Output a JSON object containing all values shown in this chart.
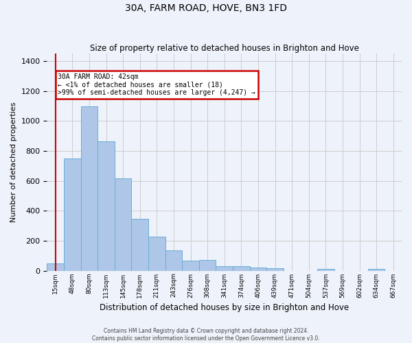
{
  "title": "30A, FARM ROAD, HOVE, BN3 1FD",
  "subtitle": "Size of property relative to detached houses in Brighton and Hove",
  "xlabel": "Distribution of detached houses by size in Brighton and Hove",
  "ylabel": "Number of detached properties",
  "footer1": "Contains HM Land Registry data © Crown copyright and database right 2024.",
  "footer2": "Contains public sector information licensed under the Open Government Licence v3.0.",
  "bin_labels": [
    "15sqm",
    "48sqm",
    "80sqm",
    "113sqm",
    "145sqm",
    "178sqm",
    "211sqm",
    "243sqm",
    "276sqm",
    "308sqm",
    "341sqm",
    "374sqm",
    "406sqm",
    "439sqm",
    "471sqm",
    "504sqm",
    "537sqm",
    "569sqm",
    "602sqm",
    "634sqm",
    "667sqm"
  ],
  "bar_heights": [
    50,
    750,
    1100,
    865,
    615,
    345,
    225,
    135,
    65,
    70,
    30,
    30,
    22,
    15,
    0,
    0,
    12,
    0,
    0,
    12,
    0
  ],
  "bar_color": "#aec6e8",
  "bar_edge_color": "#6aaed6",
  "grid_color": "#cccccc",
  "background_color": "#eef2fa",
  "annotation_text": "30A FARM ROAD: 42sqm\n← <1% of detached houses are smaller (18)\n>99% of semi-detached houses are larger (4,247) →",
  "annotation_box_color": "#ffffff",
  "annotation_edge_color": "#cc0000",
  "annotation_text_color": "#000000",
  "vline_color": "#cc0000",
  "vline_x": 0,
  "ylim": [
    0,
    1450
  ],
  "yticks": [
    0,
    200,
    400,
    600,
    800,
    1000,
    1200,
    1400
  ]
}
